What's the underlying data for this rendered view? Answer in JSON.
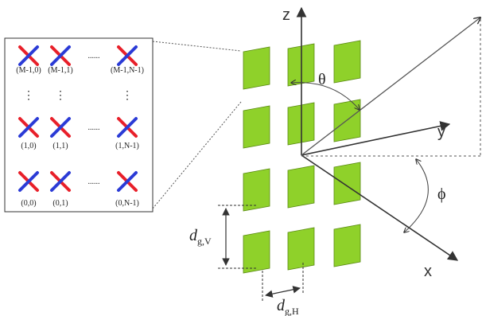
{
  "diagram": {
    "axes": {
      "z": "z",
      "y": "y",
      "x": "x",
      "theta": "θ",
      "phi": "ϕ"
    },
    "dimensions": {
      "vertical": {
        "main": "d",
        "sub": "g,V"
      },
      "horizontal": {
        "main": "d",
        "sub": "g,H"
      }
    },
    "inset": {
      "rows": [
        {
          "labels": [
            "(M-1,0)",
            "(M-1,1)",
            "(M-1,N-1)"
          ]
        },
        {
          "labels": [
            "(1,0)",
            "(1,1)",
            "(1,N-1)"
          ]
        },
        {
          "labels": [
            "(0,0)",
            "(0,1)",
            "(0,N-1)"
          ]
        }
      ],
      "ellipsis_h": "......",
      "ellipsis_v": "⋮"
    },
    "grid": {
      "rows": 4,
      "cols": 3
    },
    "colors": {
      "patch": "#8fd12a",
      "patch_edge": "#5a8a12",
      "dipole_red": "#e8202a",
      "dipole_blue": "#2b3bd6",
      "axis": "#333333"
    }
  }
}
